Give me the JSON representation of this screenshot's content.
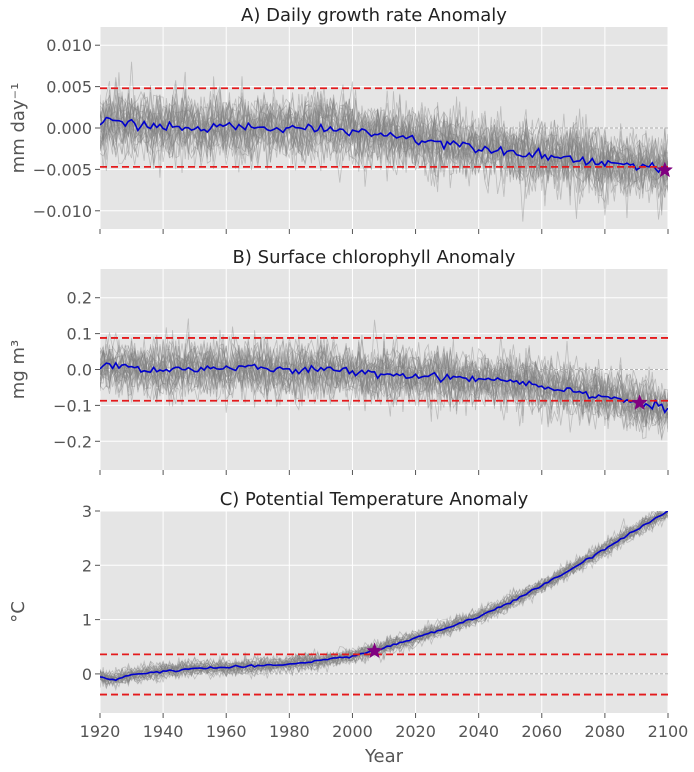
{
  "figure": {
    "xlabel": "Year",
    "colors": {
      "background": "#e5e5e5",
      "grid": "#ffffff",
      "ensemble": "#7f7f7f",
      "mean": "#0000cc",
      "threshold": "#e41a1c",
      "zero": "#999999",
      "marker": "#800080"
    }
  },
  "chart_data": [
    {
      "type": "line",
      "title": "A) Daily growth rate Anomaly",
      "ylabel": "mm day⁻¹",
      "xlim": [
        1920,
        2100
      ],
      "ylim": [
        -0.0122,
        0.0122
      ],
      "xticks": [
        1920,
        1940,
        1960,
        1980,
        2000,
        2020,
        2040,
        2060,
        2080,
        2100
      ],
      "xtick_labels_visible": false,
      "yticks": [
        -0.01,
        -0.005,
        0.0,
        0.005,
        0.01
      ],
      "ytick_labels": [
        "−0.010",
        "−0.005",
        "0.000",
        "0.005",
        "0.010"
      ],
      "thresholds": [
        0.0048,
        -0.0047
      ],
      "ensemble": {
        "members": 30,
        "spread": 0.0023
      },
      "mean_anchors": [
        [
          1920,
          0.0
        ],
        [
          1922,
          0.0009
        ],
        [
          1930,
          0.0006
        ],
        [
          1940,
          0.0001
        ],
        [
          1950,
          -0.0001
        ],
        [
          1960,
          0.0002
        ],
        [
          1970,
          0.0
        ],
        [
          1980,
          -0.0001
        ],
        [
          1990,
          0.0
        ],
        [
          2000,
          -0.0003
        ],
        [
          2010,
          -0.0008
        ],
        [
          2020,
          -0.0013
        ],
        [
          2030,
          -0.0018
        ],
        [
          2040,
          -0.0023
        ],
        [
          2050,
          -0.0028
        ],
        [
          2060,
          -0.0033
        ],
        [
          2070,
          -0.0037
        ],
        [
          2080,
          -0.0042
        ],
        [
          2090,
          -0.0045
        ],
        [
          2099,
          -0.005
        ]
      ],
      "emergence": {
        "x": 2099,
        "y": -0.0051
      }
    },
    {
      "type": "line",
      "title": "B) Surface chlorophyll Anomaly",
      "ylabel": "mg m³",
      "xlim": [
        1920,
        2100
      ],
      "ylim": [
        -0.28,
        0.28
      ],
      "xticks": [
        1920,
        1940,
        1960,
        1980,
        2000,
        2020,
        2040,
        2060,
        2080,
        2100
      ],
      "xtick_labels_visible": false,
      "yticks": [
        -0.2,
        -0.1,
        0.0,
        0.1,
        0.2
      ],
      "ytick_labels": [
        "−0.2",
        "−0.1",
        "0.0",
        "0.1",
        "0.2"
      ],
      "thresholds": [
        0.088,
        -0.087
      ],
      "ensemble": {
        "members": 30,
        "spread": 0.045
      },
      "mean_anchors": [
        [
          1920,
          0.0
        ],
        [
          1922,
          0.015
        ],
        [
          1930,
          0.005
        ],
        [
          1940,
          -0.002
        ],
        [
          1950,
          0.002
        ],
        [
          1960,
          0.006
        ],
        [
          1970,
          0.003
        ],
        [
          1980,
          -0.002
        ],
        [
          1990,
          -0.001
        ],
        [
          2000,
          -0.005
        ],
        [
          2010,
          -0.012
        ],
        [
          2020,
          -0.018
        ],
        [
          2030,
          -0.02
        ],
        [
          2040,
          -0.025
        ],
        [
          2050,
          -0.03
        ],
        [
          2060,
          -0.045
        ],
        [
          2070,
          -0.06
        ],
        [
          2080,
          -0.075
        ],
        [
          2090,
          -0.092
        ],
        [
          2100,
          -0.11
        ]
      ],
      "emergence": {
        "x": 2091,
        "y": -0.093
      }
    },
    {
      "type": "line",
      "title": "C) Potential Temperature Anomaly",
      "ylabel": "°C",
      "xlim": [
        1920,
        2100
      ],
      "ylim": [
        -0.72,
        3.0
      ],
      "xticks": [
        1920,
        1940,
        1960,
        1980,
        2000,
        2020,
        2040,
        2060,
        2080,
        2100
      ],
      "xtick_labels_visible": true,
      "xtick_labels": [
        "1920",
        "1940",
        "1960",
        "1980",
        "2000",
        "2020",
        "2040",
        "2060",
        "2080",
        "2100"
      ],
      "yticks": [
        0,
        1,
        2,
        3
      ],
      "ytick_labels": [
        "0",
        "1",
        "2",
        "3"
      ],
      "thresholds": [
        0.36,
        -0.38
      ],
      "ensemble": {
        "members": 30,
        "spread": 0.09
      },
      "mean_anchors": [
        [
          1920,
          -0.05
        ],
        [
          1923,
          -0.12
        ],
        [
          1930,
          -0.02
        ],
        [
          1940,
          0.05
        ],
        [
          1950,
          0.1
        ],
        [
          1960,
          0.12
        ],
        [
          1970,
          0.14
        ],
        [
          1980,
          0.18
        ],
        [
          1990,
          0.25
        ],
        [
          2000,
          0.33
        ],
        [
          2010,
          0.48
        ],
        [
          2020,
          0.66
        ],
        [
          2030,
          0.85
        ],
        [
          2040,
          1.05
        ],
        [
          2050,
          1.32
        ],
        [
          2060,
          1.62
        ],
        [
          2070,
          1.95
        ],
        [
          2080,
          2.3
        ],
        [
          2090,
          2.65
        ],
        [
          2100,
          3.0
        ]
      ],
      "emergence": {
        "x": 2007,
        "y": 0.42
      }
    }
  ]
}
